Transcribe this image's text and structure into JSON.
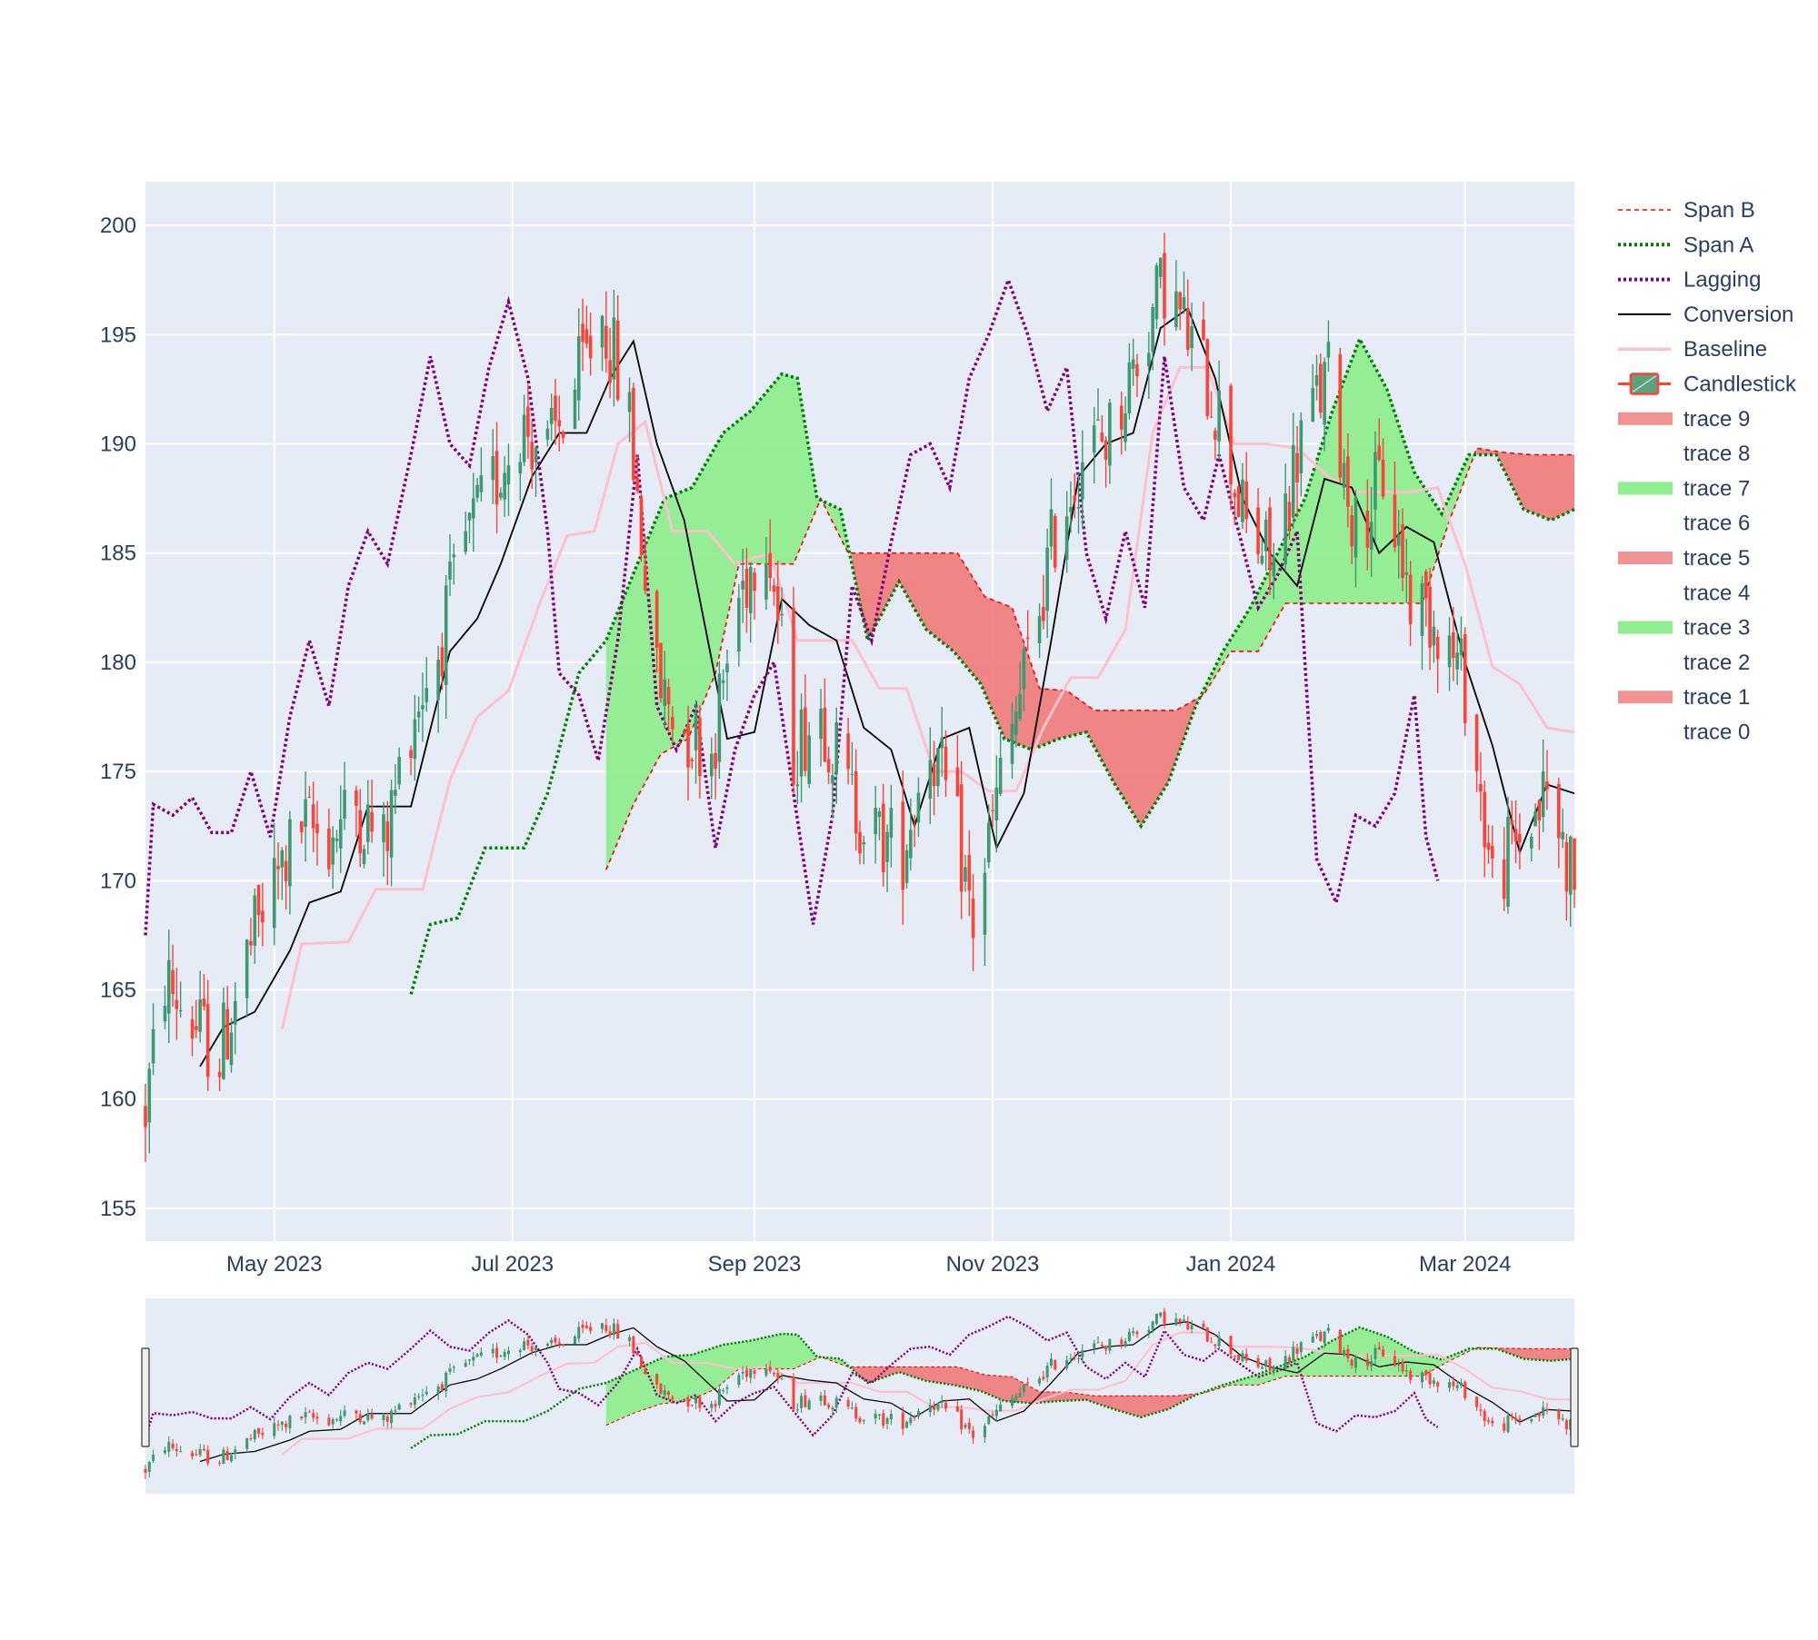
{
  "chart_data": {
    "type": "candlestick",
    "title": "",
    "xlabel": "",
    "ylabel": "",
    "x_range": [
      "2023-03-29",
      "2024-03-29"
    ],
    "ylim": [
      153.5,
      202
    ],
    "y_ticks": [
      155,
      160,
      165,
      170,
      175,
      180,
      185,
      190,
      195,
      200
    ],
    "x_ticks": [
      {
        "date": "2023-05-01",
        "label": "May 2023"
      },
      {
        "date": "2023-07-01",
        "label": "Jul 2023"
      },
      {
        "date": "2023-09-01",
        "label": "Sep 2023"
      },
      {
        "date": "2023-11-01",
        "label": "Nov 2023"
      },
      {
        "date": "2024-01-01",
        "label": "Jan 2024"
      },
      {
        "date": "2024-03-01",
        "label": "Mar 2024"
      }
    ],
    "grid": true,
    "legend_position": "right",
    "rangeslider": true,
    "colors": {
      "increasing": "#3d9970",
      "decreasing": "#ff4136",
      "bullish_cloud": "#90ee90",
      "bearish_cloud": "#f08080",
      "span_a": "#008000",
      "span_b": "#ff0000",
      "lagging": "#800080",
      "conversion": "#000000",
      "baseline": "#ffc0cb",
      "plot_bg": "#e5ecf6",
      "grid": "#ffffff",
      "axis_text": "#2a3f5f"
    },
    "legend": [
      {
        "name": "Span B",
        "kind": "dash-line",
        "color": "#ff0000"
      },
      {
        "name": "Span A",
        "kind": "dot-line",
        "color": "#008000"
      },
      {
        "name": "Lagging",
        "kind": "dot-line",
        "color": "#800080"
      },
      {
        "name": "Conversion",
        "kind": "line",
        "color": "#000000"
      },
      {
        "name": "Baseline",
        "kind": "line",
        "color": "#ffc0cb"
      },
      {
        "name": "Candlestick",
        "kind": "candle",
        "color": "#3d9970"
      },
      {
        "name": "trace 9",
        "kind": "fill",
        "color": "#f08080"
      },
      {
        "name": "trace 8",
        "kind": "none",
        "color": ""
      },
      {
        "name": "trace 7",
        "kind": "fill",
        "color": "#90ee90"
      },
      {
        "name": "trace 6",
        "kind": "none",
        "color": ""
      },
      {
        "name": "trace 5",
        "kind": "fill",
        "color": "#f08080"
      },
      {
        "name": "trace 4",
        "kind": "none",
        "color": ""
      },
      {
        "name": "trace 3",
        "kind": "fill",
        "color": "#90ee90"
      },
      {
        "name": "trace 2",
        "kind": "none",
        "color": ""
      },
      {
        "name": "trace 1",
        "kind": "fill",
        "color": "#f08080"
      },
      {
        "name": "trace 0",
        "kind": "none",
        "color": ""
      }
    ],
    "close_anchors": [
      [
        "2023-03-29",
        159.5
      ],
      [
        "2023-04-03",
        165.5
      ],
      [
        "2023-04-10",
        163.5
      ],
      [
        "2023-04-17",
        162.0
      ],
      [
        "2023-04-24",
        166.5
      ],
      [
        "2023-04-30",
        169.5
      ],
      [
        "2023-05-08",
        172.5
      ],
      [
        "2023-05-15",
        172.0
      ],
      [
        "2023-05-22",
        173.5
      ],
      [
        "2023-05-29",
        171.5
      ],
      [
        "2023-06-05",
        177.5
      ],
      [
        "2023-06-12",
        180.5
      ],
      [
        "2023-06-19",
        185.5
      ],
      [
        "2023-06-26",
        188.0
      ],
      [
        "2023-07-03",
        191.0
      ],
      [
        "2023-07-10",
        189.5
      ],
      [
        "2023-07-17",
        192.5
      ],
      [
        "2023-07-24",
        196.0
      ],
      [
        "2023-07-31",
        191.0
      ],
      [
        "2023-08-07",
        179.0
      ],
      [
        "2023-08-14",
        177.0
      ],
      [
        "2023-08-21",
        176.0
      ],
      [
        "2023-08-28",
        183.0
      ],
      [
        "2023-09-04",
        186.5
      ],
      [
        "2023-09-11",
        176.0
      ],
      [
        "2023-09-18",
        178.0
      ],
      [
        "2023-09-25",
        174.0
      ],
      [
        "2023-10-02",
        172.0
      ],
      [
        "2023-10-09",
        171.5
      ],
      [
        "2023-10-16",
        176.5
      ],
      [
        "2023-10-23",
        172.0
      ],
      [
        "2023-10-27",
        168.0
      ],
      [
        "2023-11-03",
        174.5
      ],
      [
        "2023-11-10",
        180.0
      ],
      [
        "2023-11-17",
        186.0
      ],
      [
        "2023-11-24",
        189.5
      ],
      [
        "2023-12-01",
        190.5
      ],
      [
        "2023-12-08",
        194.0
      ],
      [
        "2023-12-15",
        197.5
      ],
      [
        "2023-12-22",
        194.5
      ],
      [
        "2023-12-29",
        191.5
      ],
      [
        "2024-01-05",
        186.0
      ],
      [
        "2024-01-12",
        184.5
      ],
      [
        "2024-01-19",
        190.5
      ],
      [
        "2024-01-26",
        193.0
      ],
      [
        "2024-02-02",
        186.0
      ],
      [
        "2024-02-09",
        188.5
      ],
      [
        "2024-02-16",
        183.0
      ],
      [
        "2024-02-23",
        182.0
      ],
      [
        "2024-03-01",
        179.0
      ],
      [
        "2024-03-08",
        170.0
      ],
      [
        "2024-03-15",
        172.0
      ],
      [
        "2024-03-22",
        174.0
      ],
      [
        "2024-03-29",
        170.0
      ]
    ],
    "conversion": [
      [
        "2023-04-12",
        161.5
      ],
      [
        "2023-04-18",
        163.3
      ],
      [
        "2023-04-26",
        164.0
      ],
      [
        "2023-05-05",
        166.8
      ],
      [
        "2023-05-10",
        169.0
      ],
      [
        "2023-05-18",
        169.5
      ],
      [
        "2023-05-25",
        173.4
      ],
      [
        "2023-06-05",
        173.4
      ],
      [
        "2023-06-15",
        180.5
      ],
      [
        "2023-06-22",
        182.0
      ],
      [
        "2023-06-28",
        184.5
      ],
      [
        "2023-07-06",
        188.5
      ],
      [
        "2023-07-13",
        190.5
      ],
      [
        "2023-07-20",
        190.5
      ],
      [
        "2023-07-26",
        193.0
      ],
      [
        "2023-08-01",
        194.7
      ],
      [
        "2023-08-07",
        190.0
      ],
      [
        "2023-08-14",
        186.5
      ],
      [
        "2023-08-25",
        176.5
      ],
      [
        "2023-09-01",
        176.8
      ],
      [
        "2023-09-08",
        182.9
      ],
      [
        "2023-09-15",
        181.7
      ],
      [
        "2023-09-22",
        181.0
      ],
      [
        "2023-09-29",
        177.0
      ],
      [
        "2023-10-06",
        176.0
      ],
      [
        "2023-10-12",
        172.5
      ],
      [
        "2023-10-19",
        176.5
      ],
      [
        "2023-10-26",
        177.0
      ],
      [
        "2023-11-02",
        171.5
      ],
      [
        "2023-11-09",
        174.0
      ],
      [
        "2023-11-16",
        181.0
      ],
      [
        "2023-11-23",
        188.5
      ],
      [
        "2023-11-30",
        190.0
      ],
      [
        "2023-12-07",
        190.5
      ],
      [
        "2023-12-14",
        195.3
      ],
      [
        "2023-12-21",
        196.2
      ],
      [
        "2023-12-28",
        193.0
      ],
      [
        "2024-01-04",
        187.5
      ],
      [
        "2024-01-11",
        185.0
      ],
      [
        "2024-01-18",
        183.5
      ],
      [
        "2024-01-25",
        188.4
      ],
      [
        "2024-02-01",
        188.0
      ],
      [
        "2024-02-08",
        185.0
      ],
      [
        "2024-02-15",
        186.2
      ],
      [
        "2024-02-22",
        185.5
      ],
      [
        "2024-03-01",
        180.0
      ],
      [
        "2024-03-08",
        176.2
      ],
      [
        "2024-03-15",
        171.3
      ],
      [
        "2024-03-22",
        174.4
      ],
      [
        "2024-03-29",
        174.0
      ]
    ],
    "baseline": [
      [
        "2023-05-03",
        163.2
      ],
      [
        "2023-05-08",
        167.1
      ],
      [
        "2023-05-20",
        167.2
      ],
      [
        "2023-05-27",
        169.6
      ],
      [
        "2023-06-08",
        169.6
      ],
      [
        "2023-06-15",
        174.6
      ],
      [
        "2023-06-22",
        177.5
      ],
      [
        "2023-06-30",
        178.7
      ],
      [
        "2023-07-08",
        182.7
      ],
      [
        "2023-07-15",
        185.8
      ],
      [
        "2023-07-22",
        186.0
      ],
      [
        "2023-07-28",
        190.0
      ],
      [
        "2023-08-04",
        191.0
      ],
      [
        "2023-08-11",
        186.0
      ],
      [
        "2023-08-20",
        186.0
      ],
      [
        "2023-08-27",
        184.5
      ],
      [
        "2023-09-05",
        185.0
      ],
      [
        "2023-09-12",
        181.0
      ],
      [
        "2023-09-19",
        181.0
      ],
      [
        "2023-09-26",
        181.0
      ],
      [
        "2023-10-03",
        178.8
      ],
      [
        "2023-10-10",
        178.8
      ],
      [
        "2023-10-17",
        175.0
      ],
      [
        "2023-10-24",
        175.0
      ],
      [
        "2023-10-31",
        174.1
      ],
      [
        "2023-11-07",
        174.1
      ],
      [
        "2023-11-14",
        177.0
      ],
      [
        "2023-11-21",
        179.3
      ],
      [
        "2023-11-28",
        179.3
      ],
      [
        "2023-12-05",
        181.5
      ],
      [
        "2023-12-12",
        190.5
      ],
      [
        "2023-12-19",
        193.5
      ],
      [
        "2023-12-26",
        193.5
      ],
      [
        "2024-01-02",
        190.0
      ],
      [
        "2024-01-10",
        190.0
      ],
      [
        "2024-01-18",
        189.8
      ],
      [
        "2024-01-26",
        188.5
      ],
      [
        "2024-02-02",
        187.8
      ],
      [
        "2024-02-09",
        187.8
      ],
      [
        "2024-02-16",
        187.8
      ],
      [
        "2024-02-23",
        188.0
      ],
      [
        "2024-03-01",
        184.5
      ],
      [
        "2024-03-08",
        179.8
      ],
      [
        "2024-03-15",
        179.0
      ],
      [
        "2024-03-22",
        177.0
      ],
      [
        "2024-03-29",
        176.8
      ]
    ],
    "span_a": [
      [
        "2023-06-05",
        164.8
      ],
      [
        "2023-06-10",
        168.0
      ],
      [
        "2023-06-17",
        168.3
      ],
      [
        "2023-06-24",
        171.5
      ],
      [
        "2023-07-04",
        171.5
      ],
      [
        "2023-07-10",
        174.0
      ],
      [
        "2023-07-18",
        179.5
      ],
      [
        "2023-07-25",
        181.0
      ],
      [
        "2023-08-02",
        184.5
      ],
      [
        "2023-08-09",
        187.5
      ],
      [
        "2023-08-16",
        188.0
      ],
      [
        "2023-08-24",
        190.5
      ],
      [
        "2023-08-31",
        191.5
      ],
      [
        "2023-09-08",
        193.2
      ],
      [
        "2023-09-12",
        193.0
      ],
      [
        "2023-09-17",
        187.5
      ],
      [
        "2023-09-23",
        187.0
      ],
      [
        "2023-09-30",
        181.0
      ],
      [
        "2023-10-08",
        183.7
      ],
      [
        "2023-10-15",
        181.5
      ],
      [
        "2023-10-22",
        180.5
      ],
      [
        "2023-10-29",
        179.0
      ],
      [
        "2023-11-04",
        176.5
      ],
      [
        "2023-11-11",
        176.0
      ],
      [
        "2023-11-18",
        176.5
      ],
      [
        "2023-11-25",
        176.8
      ],
      [
        "2023-12-02",
        174.5
      ],
      [
        "2023-12-09",
        172.5
      ],
      [
        "2023-12-16",
        174.5
      ],
      [
        "2023-12-23",
        178.0
      ],
      [
        "2023-12-30",
        180.5
      ],
      [
        "2024-01-06",
        182.5
      ],
      [
        "2024-01-13",
        185.0
      ],
      [
        "2024-01-20",
        187.5
      ],
      [
        "2024-01-27",
        191.5
      ],
      [
        "2024-02-03",
        194.8
      ],
      [
        "2024-02-10",
        192.5
      ],
      [
        "2024-02-17",
        188.7
      ],
      [
        "2024-02-24",
        186.8
      ],
      [
        "2024-03-02",
        189.5
      ],
      [
        "2024-03-09",
        189.5
      ],
      [
        "2024-03-16",
        187.0
      ],
      [
        "2024-03-23",
        186.5
      ],
      [
        "2024-03-29",
        187.0
      ]
    ],
    "span_b": [
      [
        "2023-07-25",
        170.5
      ],
      [
        "2023-08-01",
        173.5
      ],
      [
        "2023-08-08",
        175.8
      ],
      [
        "2023-08-15",
        176.5
      ],
      [
        "2023-08-22",
        179.5
      ],
      [
        "2023-08-28",
        184.5
      ],
      [
        "2023-09-04",
        184.5
      ],
      [
        "2023-09-11",
        184.5
      ],
      [
        "2023-09-18",
        187.5
      ],
      [
        "2023-09-25",
        185.0
      ],
      [
        "2023-10-02",
        185.0
      ],
      [
        "2023-10-09",
        185.0
      ],
      [
        "2023-10-16",
        185.0
      ],
      [
        "2023-10-23",
        185.0
      ],
      [
        "2023-10-30",
        183.0
      ],
      [
        "2023-11-06",
        182.5
      ],
      [
        "2023-11-13",
        178.8
      ],
      [
        "2023-11-20",
        178.7
      ],
      [
        "2023-11-27",
        177.8
      ],
      [
        "2023-12-04",
        177.8
      ],
      [
        "2023-12-11",
        177.8
      ],
      [
        "2023-12-18",
        177.8
      ],
      [
        "2023-12-25",
        178.5
      ],
      [
        "2024-01-01",
        180.5
      ],
      [
        "2024-01-08",
        180.5
      ],
      [
        "2024-01-15",
        182.7
      ],
      [
        "2024-01-22",
        182.7
      ],
      [
        "2024-01-29",
        182.7
      ],
      [
        "2024-02-05",
        182.7
      ],
      [
        "2024-02-12",
        182.7
      ],
      [
        "2024-02-19",
        182.7
      ],
      [
        "2024-02-26",
        186.5
      ],
      [
        "2024-03-04",
        189.8
      ],
      [
        "2024-03-11",
        189.6
      ],
      [
        "2024-03-18",
        189.5
      ],
      [
        "2024-03-29",
        189.5
      ]
    ],
    "lagging": [
      [
        "2023-03-29",
        167.5
      ],
      [
        "2023-03-31",
        173.5
      ],
      [
        "2023-04-05",
        173.0
      ],
      [
        "2023-04-10",
        173.8
      ],
      [
        "2023-04-15",
        172.2
      ],
      [
        "2023-04-20",
        172.2
      ],
      [
        "2023-04-25",
        175.0
      ],
      [
        "2023-04-30",
        172.0
      ],
      [
        "2023-05-05",
        177.5
      ],
      [
        "2023-05-10",
        181.0
      ],
      [
        "2023-05-15",
        178.0
      ],
      [
        "2023-05-20",
        183.5
      ],
      [
        "2023-05-25",
        186.0
      ],
      [
        "2023-05-30",
        184.5
      ],
      [
        "2023-06-05",
        189.5
      ],
      [
        "2023-06-10",
        194.0
      ],
      [
        "2023-06-15",
        190.0
      ],
      [
        "2023-06-20",
        189.0
      ],
      [
        "2023-06-25",
        193.5
      ],
      [
        "2023-06-30",
        196.5
      ],
      [
        "2023-07-05",
        193.0
      ],
      [
        "2023-07-10",
        186.0
      ],
      [
        "2023-07-13",
        179.5
      ],
      [
        "2023-07-18",
        178.5
      ],
      [
        "2023-07-23",
        175.5
      ],
      [
        "2023-07-28",
        181.0
      ],
      [
        "2023-08-02",
        189.5
      ],
      [
        "2023-08-07",
        178.0
      ],
      [
        "2023-08-12",
        176.0
      ],
      [
        "2023-08-17",
        178.0
      ],
      [
        "2023-08-22",
        171.5
      ],
      [
        "2023-08-27",
        176.0
      ],
      [
        "2023-09-01",
        178.5
      ],
      [
        "2023-09-06",
        180.0
      ],
      [
        "2023-09-11",
        174.0
      ],
      [
        "2023-09-16",
        168.0
      ],
      [
        "2023-09-21",
        173.0
      ],
      [
        "2023-09-26",
        183.5
      ],
      [
        "2023-10-01",
        181.0
      ],
      [
        "2023-10-06",
        185.5
      ],
      [
        "2023-10-11",
        189.5
      ],
      [
        "2023-10-16",
        190.0
      ],
      [
        "2023-10-21",
        188.0
      ],
      [
        "2023-10-26",
        193.0
      ],
      [
        "2023-10-31",
        195.0
      ],
      [
        "2023-11-05",
        197.5
      ],
      [
        "2023-11-10",
        195.0
      ],
      [
        "2023-11-15",
        191.5
      ],
      [
        "2023-11-20",
        193.5
      ],
      [
        "2023-11-25",
        185.0
      ],
      [
        "2023-11-30",
        182.0
      ],
      [
        "2023-12-05",
        186.0
      ],
      [
        "2023-12-10",
        182.5
      ],
      [
        "2023-12-15",
        194.0
      ],
      [
        "2023-12-20",
        188.0
      ],
      [
        "2023-12-25",
        186.5
      ],
      [
        "2023-12-29",
        189.5
      ],
      [
        "2024-01-03",
        186.0
      ],
      [
        "2024-01-08",
        182.5
      ],
      [
        "2024-01-13",
        184.0
      ],
      [
        "2024-01-18",
        186.0
      ],
      [
        "2024-01-23",
        171.0
      ],
      [
        "2024-01-28",
        169.0
      ],
      [
        "2024-02-02",
        173.0
      ],
      [
        "2024-02-07",
        172.5
      ],
      [
        "2024-02-12",
        174.0
      ],
      [
        "2024-02-17",
        178.5
      ],
      [
        "2024-02-20",
        172.0
      ],
      [
        "2024-02-23",
        170.0
      ]
    ]
  }
}
